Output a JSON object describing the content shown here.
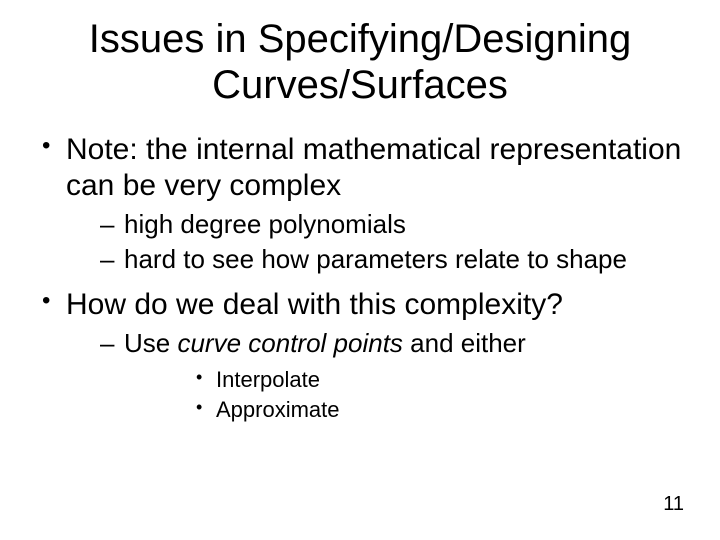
{
  "slide": {
    "title": "Issues in Specifying/Designing Curves/Surfaces",
    "bullets": [
      {
        "text": "Note: the internal mathematical representation can be very complex",
        "sub": [
          {
            "text": "high degree polynomials"
          },
          {
            "text": "hard to see how parameters relate to shape"
          }
        ]
      },
      {
        "text": "How do we deal with this complexity?",
        "sub": [
          {
            "prefix": "Use ",
            "italic": "curve control points",
            "suffix": " and either",
            "subsub": [
              {
                "text": "Interpolate"
              },
              {
                "text": "Approximate"
              }
            ]
          }
        ]
      }
    ],
    "page_number": "11",
    "colors": {
      "background": "#ffffff",
      "text": "#000000"
    },
    "fonts": {
      "title_size_pt": 40,
      "l1_size_pt": 30,
      "l2_size_pt": 26,
      "l3_size_pt": 22,
      "pagenum_size_pt": 20,
      "family": "Arial"
    }
  }
}
